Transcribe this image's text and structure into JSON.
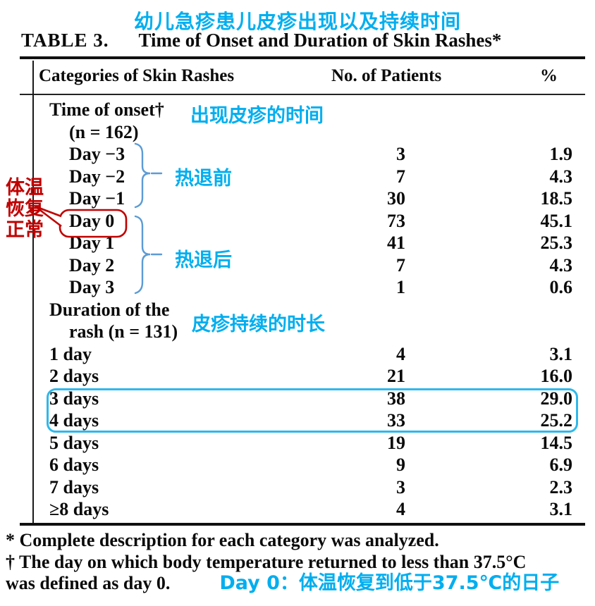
{
  "title_annotation": "幼儿急疹患儿皮疹出现以及持续时间",
  "caption": {
    "label": "TABLE 3.",
    "text": "Time of Onset and Duration of Skin Rashes*"
  },
  "columns": {
    "category": "Categories of Skin Rashes",
    "patients": "No. of Patients",
    "percent": "%"
  },
  "rows": [
    {
      "label": "Time of onset†",
      "indent": 1,
      "patients": "",
      "percent": ""
    },
    {
      "label": "(n = 162)",
      "indent": 2,
      "patients": "",
      "percent": ""
    },
    {
      "label": "Day −3",
      "indent": 2,
      "patients": "3",
      "percent": "1.9"
    },
    {
      "label": "Day −2",
      "indent": 2,
      "patients": "7",
      "percent": "4.3"
    },
    {
      "label": "Day −1",
      "indent": 2,
      "patients": "30",
      "percent": "18.5"
    },
    {
      "label": "Day 0",
      "indent": 2,
      "patients": "73",
      "percent": "45.1"
    },
    {
      "label": "Day 1",
      "indent": 2,
      "patients": "41",
      "percent": "25.3"
    },
    {
      "label": "Day 2",
      "indent": 2,
      "patients": "7",
      "percent": "4.3"
    },
    {
      "label": "Day 3",
      "indent": 2,
      "patients": "1",
      "percent": "0.6"
    },
    {
      "label": "Duration of the",
      "indent": 1,
      "patients": "",
      "percent": ""
    },
    {
      "label": "rash (n = 131)",
      "indent": 2,
      "patients": "",
      "percent": ""
    },
    {
      "label": "1 day",
      "indent": 1,
      "patients": "4",
      "percent": "3.1"
    },
    {
      "label": "2 days",
      "indent": 1,
      "patients": "21",
      "percent": "16.0"
    },
    {
      "label": "3 days",
      "indent": 1,
      "patients": "38",
      "percent": "29.0"
    },
    {
      "label": "4 days",
      "indent": 1,
      "patients": "33",
      "percent": "25.2"
    },
    {
      "label": "5 days",
      "indent": 1,
      "patients": "19",
      "percent": "14.5"
    },
    {
      "label": "6 days",
      "indent": 1,
      "patients": "9",
      "percent": "6.9"
    },
    {
      "label": "7 days",
      "indent": 1,
      "patients": "3",
      "percent": "2.3"
    },
    {
      "label": "≥8 days",
      "indent": 1,
      "patients": "4",
      "percent": "3.1"
    }
  ],
  "annotations": {
    "onset_time": "出现皮疹的时间",
    "before_defervescence": "热退前",
    "after_defervescence": "热退后",
    "duration": "皮疹持续的时长",
    "temp_normal": [
      "体温",
      "恢复",
      "正常"
    ],
    "day0_note": "Day 0：体温恢复到低于37.5℃的日子"
  },
  "footnotes": [
    "* Complete description for each category was analyzed.",
    "† The day on which body temperature returned to less than 37.5°C",
    "was defined as day 0."
  ],
  "colors": {
    "annotation_cyan": "#00AEEF",
    "highlight_box_cyan": "#2FB8EA",
    "bracket_blue": "#5B9BD5",
    "annotation_red": "#C00000",
    "text_black": "#0b0b0b"
  }
}
